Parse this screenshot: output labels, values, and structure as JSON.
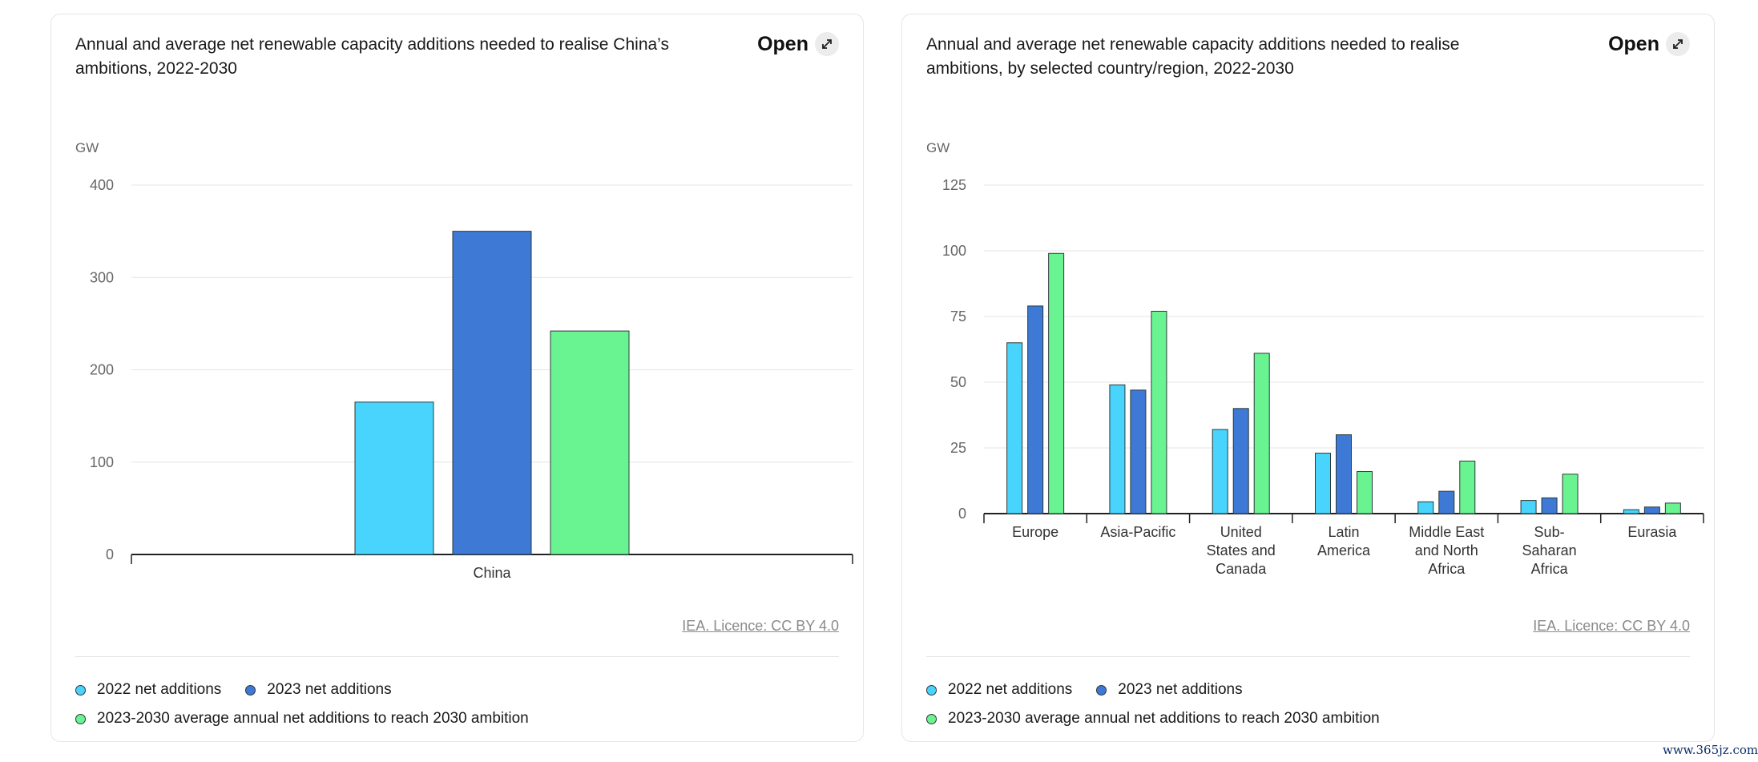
{
  "colors": {
    "series_2022": "#48d4fd",
    "series_2023": "#3d79d5",
    "series_ambition": "#69f391"
  },
  "cards": [
    {
      "title": "Annual and average net renewable capacity additions needed to realise China’s ambitions, 2022-2030",
      "open_label": "Open",
      "open_icon": "expand-arrows-icon",
      "licence": "IEA. Licence: CC BY 4.0",
      "legend": {
        "item_2022": "2022 net additions",
        "item_2023": "2023 net additions",
        "item_ambition": "2023-2030 average annual net additions to reach 2030 ambition"
      }
    },
    {
      "title": "Annual and average net renewable capacity additions needed to realise ambitions, by selected country/region, 2022-2030",
      "open_label": "Open",
      "open_icon": "expand-arrows-icon",
      "licence": "IEA. Licence: CC BY 4.0",
      "legend": {
        "item_2022": "2022 net additions",
        "item_2023": "2023 net additions",
        "item_ambition": "2023-2030 average annual net additions to reach 2030 ambition"
      }
    }
  ],
  "chart_data": [
    {
      "type": "bar",
      "ylabel": "GW",
      "ylim": [
        0,
        400
      ],
      "yticks": [
        0,
        100,
        200,
        300,
        400
      ],
      "grid": true,
      "categories": [
        [
          "China"
        ]
      ],
      "series": [
        {
          "name": "2022 net additions",
          "values": [
            165
          ]
        },
        {
          "name": "2023 net additions",
          "values": [
            350
          ]
        },
        {
          "name": "2023-2030 average annual net additions to reach 2030 ambition",
          "values": [
            242
          ]
        }
      ]
    },
    {
      "type": "bar",
      "ylabel": "GW",
      "ylim": [
        0,
        125
      ],
      "yticks": [
        0,
        25,
        50,
        75,
        100,
        125
      ],
      "grid": true,
      "categories": [
        [
          "Europe"
        ],
        [
          "Asia-Pacific"
        ],
        [
          "United",
          "States and",
          "Canada"
        ],
        [
          "Latin",
          "America"
        ],
        [
          "Middle East",
          "and North",
          "Africa"
        ],
        [
          "Sub-",
          "Saharan",
          "Africa"
        ],
        [
          "Eurasia"
        ]
      ],
      "series": [
        {
          "name": "2022 net additions",
          "values": [
            65,
            49,
            32,
            23,
            4.5,
            5,
            1.5
          ]
        },
        {
          "name": "2023 net additions",
          "values": [
            79,
            47,
            40,
            30,
            8.5,
            6,
            2.5
          ]
        },
        {
          "name": "2023-2030 average annual net additions to reach 2030 ambition",
          "values": [
            99,
            77,
            61,
            16,
            20,
            15,
            4
          ]
        }
      ]
    }
  ],
  "watermark": "www.365jz.com"
}
